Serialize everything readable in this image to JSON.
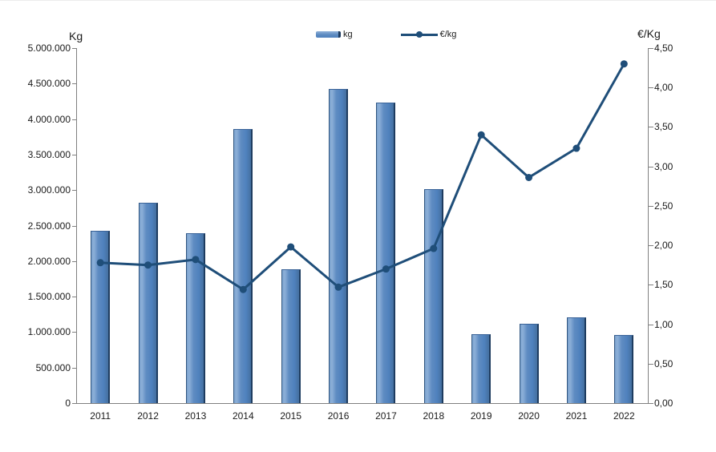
{
  "axes": {
    "left_title": "Kg",
    "right_title": "€/Kg"
  },
  "legend": {
    "bar_label": "kg",
    "line_label": "€/kg"
  },
  "chart_data": {
    "type": "bar",
    "subtype": "bar-line-combo",
    "categories": [
      "2011",
      "2012",
      "2013",
      "2014",
      "2015",
      "2016",
      "2017",
      "2018",
      "2019",
      "2020",
      "2021",
      "2022"
    ],
    "series": [
      {
        "name": "kg",
        "type": "bar",
        "axis": "left",
        "color": "#4f81bd",
        "values": [
          2430000,
          2820000,
          2390000,
          3860000,
          1890000,
          4430000,
          4230000,
          3010000,
          970000,
          1120000,
          1210000,
          960000
        ]
      },
      {
        "name": "€/kg",
        "type": "line",
        "axis": "right",
        "color": "#1f4e79",
        "values": [
          1.78,
          1.75,
          1.82,
          1.44,
          1.98,
          1.47,
          1.7,
          1.96,
          3.4,
          2.86,
          3.23,
          4.3
        ]
      }
    ],
    "left_axis": {
      "title": "Kg",
      "min": 0,
      "max": 5000000,
      "step": 500000,
      "tick_format": "thousands-dot"
    },
    "right_axis": {
      "title": "€/Kg",
      "min": 0,
      "max": 4.5,
      "step": 0.5,
      "tick_format": "comma-2dp"
    },
    "legend_position": "top",
    "grid": false
  }
}
